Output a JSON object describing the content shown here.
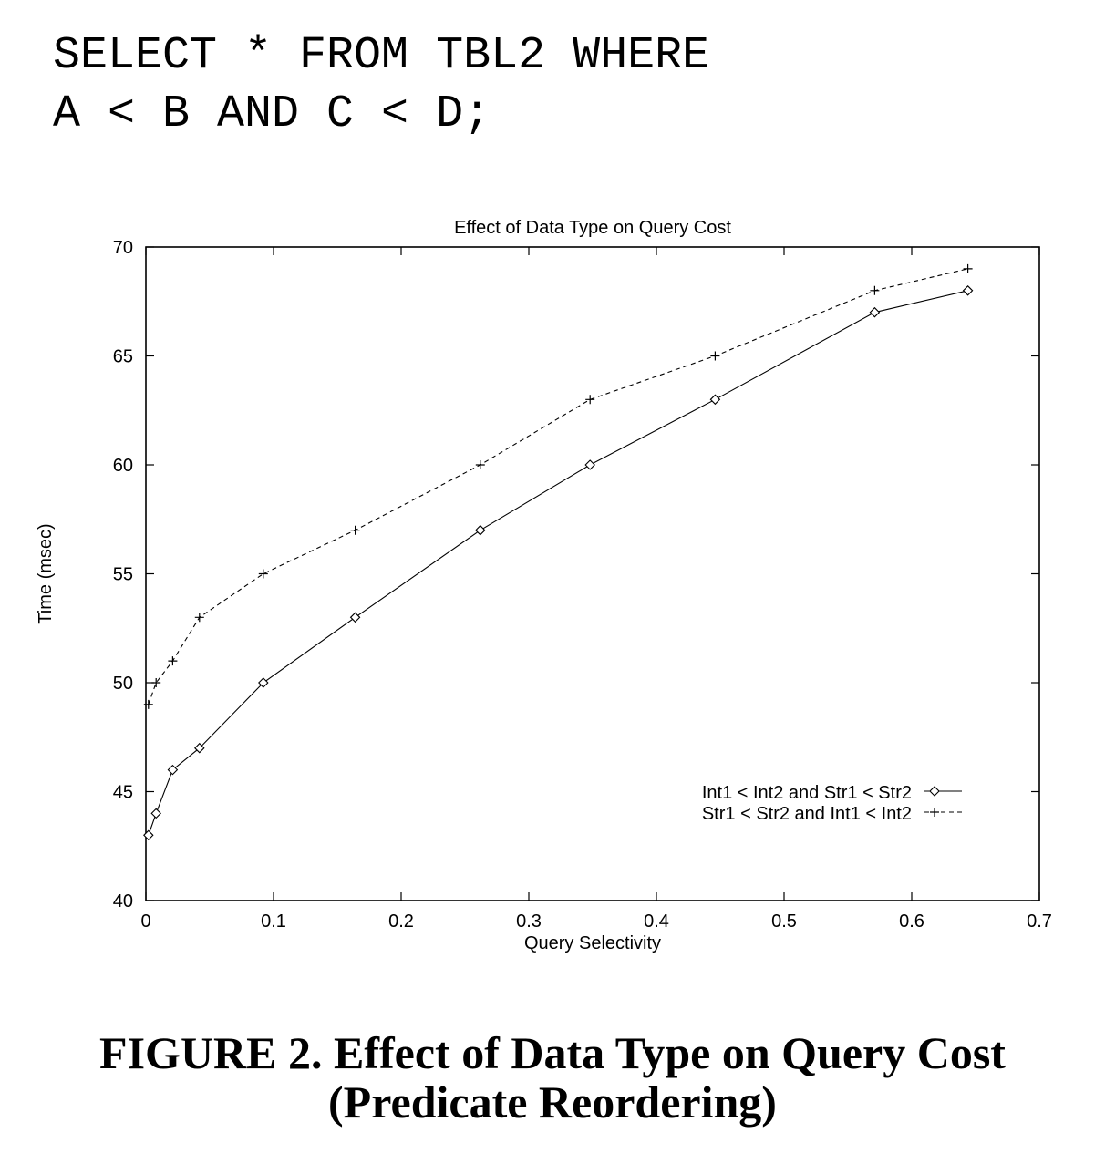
{
  "query": {
    "line1": "SELECT * FROM TBL2 WHERE",
    "line2": "A < B AND C < D;"
  },
  "caption": {
    "line1": "FIGURE 2. Effect of Data Type on Query Cost",
    "line2": "(Predicate Reordering)"
  },
  "chart_data": {
    "type": "line",
    "title": "Effect of Data Type on Query Cost",
    "xlabel": "Query Selectivity",
    "ylabel": "Time (msec)",
    "xlim": [
      0,
      0.7
    ],
    "ylim": [
      40,
      70
    ],
    "xticks": [
      0,
      0.1,
      0.2,
      0.3,
      0.4,
      0.5,
      0.6,
      0.7
    ],
    "yticks": [
      40,
      45,
      50,
      55,
      60,
      65,
      70
    ],
    "xtick_labels": [
      "0",
      "0.1",
      "0.2",
      "0.3",
      "0.4",
      "0.5",
      "0.6",
      "0.7"
    ],
    "ytick_labels": [
      "40",
      "45",
      "50",
      "55",
      "60",
      "65",
      "70"
    ],
    "grid": false,
    "legend_position": "lower-right",
    "series": [
      {
        "name": "Int1 < Int2 and Str1 < Str2",
        "marker": "diamond",
        "line": "solid",
        "x": [
          0.002,
          0.008,
          0.021,
          0.042,
          0.092,
          0.164,
          0.262,
          0.348,
          0.446,
          0.571,
          0.644
        ],
        "y": [
          43,
          44,
          46,
          47,
          50,
          53,
          57,
          60,
          63,
          67,
          68
        ]
      },
      {
        "name": "Str1 < Str2 and Int1 < Int2",
        "marker": "plus",
        "line": "dashed",
        "x": [
          0.002,
          0.008,
          0.021,
          0.042,
          0.092,
          0.164,
          0.262,
          0.348,
          0.446,
          0.571,
          0.644
        ],
        "y": [
          49,
          50,
          51,
          53,
          55,
          57,
          60,
          63,
          65,
          68,
          69
        ]
      }
    ]
  }
}
